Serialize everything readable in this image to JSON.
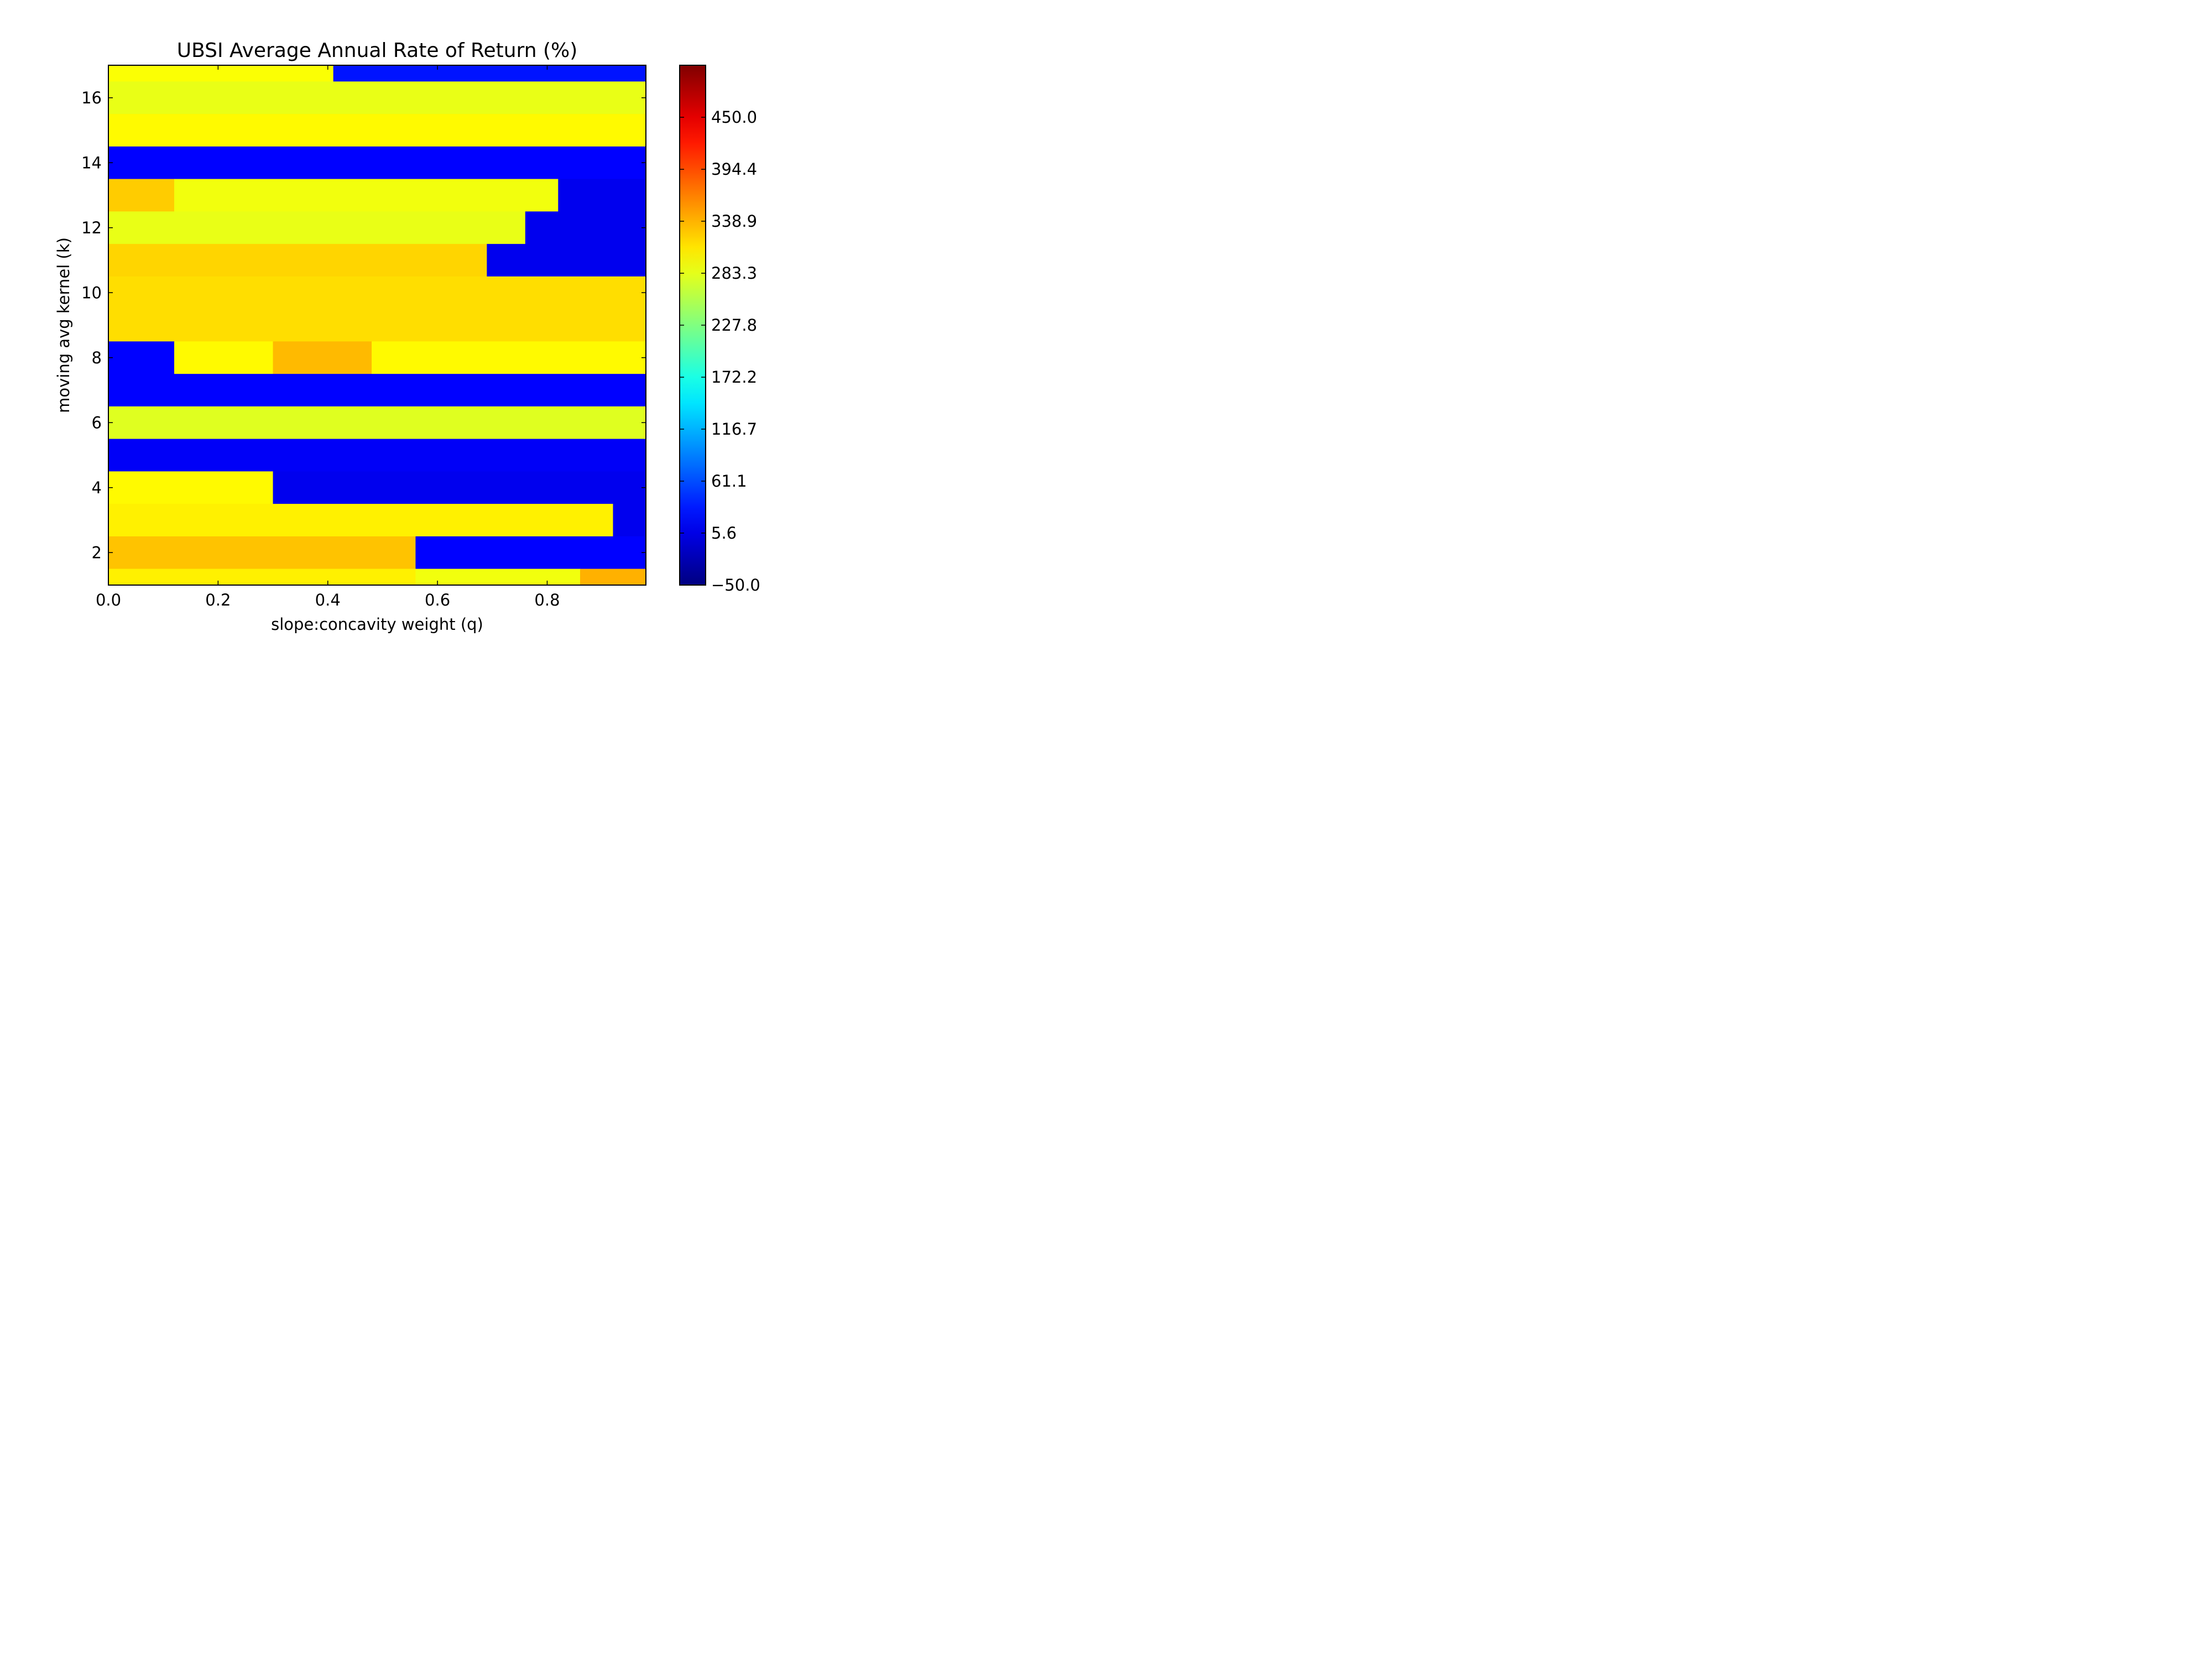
{
  "chart_data": {
    "type": "heatmap",
    "title": "UBSI Average Annual Rate of Return (%)",
    "xlabel": "slope:concavity weight (q)",
    "ylabel": "moving avg kernel (k)",
    "xlim": [
      0.0,
      0.98
    ],
    "ylim": [
      1,
      17
    ],
    "x_ticks": [
      0.0,
      0.2,
      0.4,
      0.6,
      0.8
    ],
    "x_tick_labels": [
      "0.0",
      "0.2",
      "0.4",
      "0.6",
      "0.8"
    ],
    "y_ticks": [
      2,
      4,
      6,
      8,
      10,
      12,
      14,
      16
    ],
    "y_tick_labels": [
      "2",
      "4",
      "6",
      "8",
      "10",
      "12",
      "14",
      "16"
    ],
    "colormap": "jet",
    "color_range": [
      -50.0,
      505.6
    ],
    "colorbar_ticks": [
      -50.0,
      5.6,
      61.1,
      116.7,
      172.2,
      227.8,
      283.3,
      338.9,
      394.4,
      450.0
    ],
    "colorbar_tick_labels": [
      "−50.0",
      "5.6",
      "61.1",
      "116.7",
      "172.2",
      "227.8",
      "283.3",
      "338.9",
      "394.4",
      "450.0"
    ],
    "rows": [
      {
        "k": 17,
        "segments": [
          {
            "q_from": 0.0,
            "q_to": 0.41,
            "value": 295
          },
          {
            "q_from": 0.41,
            "q_to": 0.98,
            "value": 30
          }
        ]
      },
      {
        "k": 16,
        "segments": [
          {
            "q_from": 0.0,
            "q_to": 0.98,
            "value": 285
          }
        ]
      },
      {
        "k": 15,
        "segments": [
          {
            "q_from": 0.0,
            "q_to": 0.98,
            "value": 300
          }
        ]
      },
      {
        "k": 14,
        "segments": [
          {
            "q_from": 0.0,
            "q_to": 0.98,
            "value": 20
          }
        ]
      },
      {
        "k": 13,
        "segments": [
          {
            "q_from": 0.0,
            "q_to": 0.12,
            "value": 325
          },
          {
            "q_from": 0.12,
            "q_to": 0.82,
            "value": 290
          },
          {
            "q_from": 0.82,
            "q_to": 0.98,
            "value": 10
          }
        ]
      },
      {
        "k": 12,
        "segments": [
          {
            "q_from": 0.0,
            "q_to": 0.76,
            "value": 285
          },
          {
            "q_from": 0.76,
            "q_to": 0.98,
            "value": 10
          }
        ]
      },
      {
        "k": 11,
        "segments": [
          {
            "q_from": 0.0,
            "q_to": 0.69,
            "value": 320
          },
          {
            "q_from": 0.69,
            "q_to": 0.98,
            "value": 10
          }
        ]
      },
      {
        "k": 10,
        "segments": [
          {
            "q_from": 0.0,
            "q_to": 0.98,
            "value": 315
          }
        ]
      },
      {
        "k": 9,
        "segments": [
          {
            "q_from": 0.0,
            "q_to": 0.98,
            "value": 315
          }
        ]
      },
      {
        "k": 8,
        "segments": [
          {
            "q_from": 0.0,
            "q_to": 0.12,
            "value": 20
          },
          {
            "q_from": 0.12,
            "q_to": 0.3,
            "value": 300
          },
          {
            "q_from": 0.3,
            "q_to": 0.48,
            "value": 335
          },
          {
            "q_from": 0.48,
            "q_to": 0.98,
            "value": 300
          }
        ]
      },
      {
        "k": 7,
        "segments": [
          {
            "q_from": 0.0,
            "q_to": 0.98,
            "value": 20
          }
        ]
      },
      {
        "k": 6,
        "segments": [
          {
            "q_from": 0.0,
            "q_to": 0.98,
            "value": 280
          }
        ]
      },
      {
        "k": 5,
        "segments": [
          {
            "q_from": 0.0,
            "q_to": 0.98,
            "value": 15
          }
        ]
      },
      {
        "k": 4,
        "segments": [
          {
            "q_from": 0.0,
            "q_to": 0.3,
            "value": 300
          },
          {
            "q_from": 0.3,
            "q_to": 0.98,
            "value": 10
          }
        ]
      },
      {
        "k": 3,
        "segments": [
          {
            "q_from": 0.0,
            "q_to": 0.92,
            "value": 305
          },
          {
            "q_from": 0.92,
            "q_to": 0.98,
            "value": 10
          }
        ]
      },
      {
        "k": 2,
        "segments": [
          {
            "q_from": 0.0,
            "q_to": 0.56,
            "value": 330
          },
          {
            "q_from": 0.56,
            "q_to": 0.98,
            "value": 20
          }
        ]
      },
      {
        "k": 1,
        "segments": [
          {
            "q_from": 0.0,
            "q_to": 0.56,
            "value": 305
          },
          {
            "q_from": 0.56,
            "q_to": 0.86,
            "value": 290
          },
          {
            "q_from": 0.86,
            "q_to": 0.98,
            "value": 340
          }
        ]
      }
    ]
  }
}
